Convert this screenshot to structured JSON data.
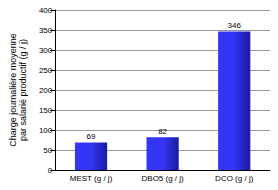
{
  "chart_data": {
    "type": "bar",
    "y_label": "Charge journalière moyenne\npar salarié productif (g / j)",
    "categories": [
      "MEST (g / j)",
      "DBO5 (g / j)",
      "DCO (g / j)"
    ],
    "values": [
      69,
      82,
      346
    ],
    "color": "#3535f5",
    "ylim": [
      0,
      400
    ],
    "yticks": [
      0,
      50,
      100,
      150,
      200,
      250,
      300,
      350,
      400
    ],
    "grid": true,
    "data_labels": true
  }
}
